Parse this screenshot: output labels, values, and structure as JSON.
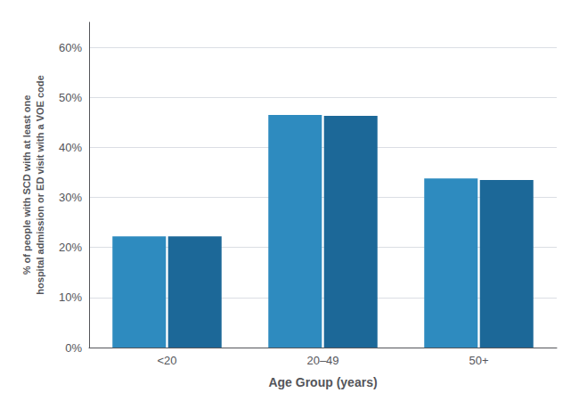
{
  "chart_data": {
    "type": "bar",
    "categories": [
      "<20",
      "20–49",
      "50+"
    ],
    "series": [
      {
        "color": "#2E8BBF",
        "values": [
          0.222,
          0.465,
          0.338
        ]
      },
      {
        "color": "#1C6898",
        "values": [
          0.222,
          0.463,
          0.335
        ]
      }
    ],
    "xlabel": "Age Group (years)",
    "ylabel": "% of people with SCD with at least one\nhospital admission or ED visit with a VOE code",
    "ylim": [
      0,
      0.65
    ],
    "yticks": [
      {
        "value": 0.0,
        "label": "0%"
      },
      {
        "value": 0.1,
        "label": "10%"
      },
      {
        "value": 0.2,
        "label": "20%"
      },
      {
        "value": 0.3,
        "label": "30%"
      },
      {
        "value": 0.4,
        "label": "40%"
      },
      {
        "value": 0.5,
        "label": "50%"
      },
      {
        "value": 0.6,
        "label": "60%"
      }
    ],
    "grid": true
  }
}
